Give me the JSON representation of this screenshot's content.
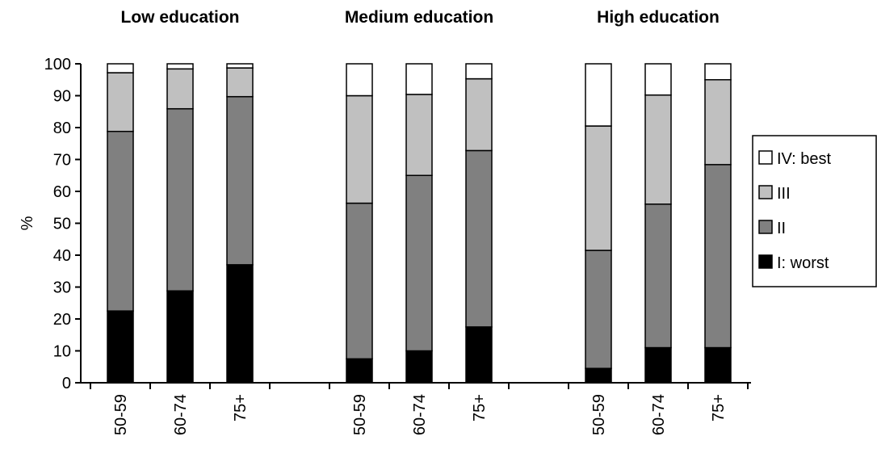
{
  "chart_data": {
    "type": "bar",
    "stacked": true,
    "ylabel": "%",
    "ylim": [
      0,
      100
    ],
    "yticks": [
      0,
      10,
      20,
      30,
      40,
      50,
      60,
      70,
      80,
      90,
      100
    ],
    "grid": false,
    "legend_position": "right",
    "groups": [
      {
        "title": "Low education",
        "categories": [
          "50-59",
          "60-74",
          "75+"
        ],
        "series": [
          {
            "name": "I: worst",
            "values": [
              22.5,
              28.8,
              37.0
            ]
          },
          {
            "name": "II",
            "values": [
              56.3,
              57.1,
              52.7
            ]
          },
          {
            "name": "III",
            "values": [
              18.4,
              12.5,
              9.0
            ]
          },
          {
            "name": "IV: best",
            "values": [
              2.8,
              1.6,
              1.3
            ]
          }
        ]
      },
      {
        "title": "Medium education",
        "categories": [
          "50-59",
          "60-74",
          "75+"
        ],
        "series": [
          {
            "name": "I: worst",
            "values": [
              7.5,
              10.0,
              17.5
            ]
          },
          {
            "name": "II",
            "values": [
              48.8,
              55.0,
              55.3
            ]
          },
          {
            "name": "III",
            "values": [
              33.7,
              25.4,
              22.5
            ]
          },
          {
            "name": "IV: best",
            "values": [
              10.0,
              9.6,
              4.7
            ]
          }
        ]
      },
      {
        "title": "High education",
        "categories": [
          "50-59",
          "60-74",
          "75+"
        ],
        "series": [
          {
            "name": "I: worst",
            "values": [
              4.5,
              11.0,
              11.0
            ]
          },
          {
            "name": "II",
            "values": [
              37.0,
              45.0,
              57.4
            ]
          },
          {
            "name": "III",
            "values": [
              39.0,
              34.2,
              26.6
            ]
          },
          {
            "name": "IV: best",
            "values": [
              19.5,
              9.8,
              5.0
            ]
          }
        ]
      }
    ],
    "legend": [
      {
        "name": "IV: best",
        "color": "#ffffff"
      },
      {
        "name": "III",
        "color": "#c0c0c0"
      },
      {
        "name": "II",
        "color": "#808080"
      },
      {
        "name": "I: worst",
        "color": "#000000"
      }
    ],
    "series_colors": {
      "I: worst": "#000000",
      "II": "#808080",
      "III": "#c0c0c0",
      "IV: best": "#ffffff"
    }
  }
}
